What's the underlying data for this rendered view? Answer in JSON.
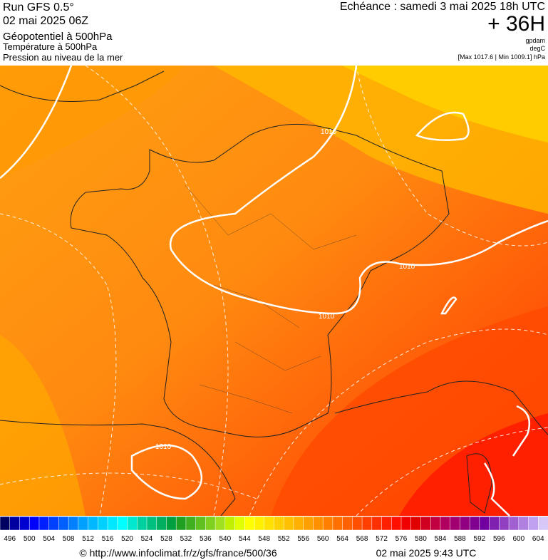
{
  "header": {
    "run": "Run GFS 0.5°",
    "run_date": "02 mai 2025 06Z",
    "field_1": "Géopotentiel à 500hPa",
    "field_2": "Température à 500hPa",
    "field_3": "Pression au niveau de la mer",
    "valid_time": "Echéance : samedi 3 mai 2025 18h UTC",
    "lead": "+ 36H",
    "unit_1": "gpdam",
    "unit_2": "degC",
    "pressure_range": "[Max 1017.6 | Min 1009.1] hPa"
  },
  "map": {
    "contour_labels": [
      "1010",
      "1010",
      "1010",
      "1010"
    ]
  },
  "scale": {
    "labels": [
      496,
      500,
      504,
      508,
      512,
      516,
      520,
      524,
      528,
      532,
      536,
      540,
      544,
      548,
      552,
      556,
      560,
      564,
      568,
      572,
      576,
      580,
      584,
      588,
      592,
      596,
      600,
      604
    ],
    "colors": [
      "#000060",
      "#0000a0",
      "#0000d0",
      "#0000ff",
      "#0020ff",
      "#0040ff",
      "#0060ff",
      "#0080ff",
      "#00a0ff",
      "#00b8ff",
      "#00d0ff",
      "#00e8ff",
      "#00ffff",
      "#00e8d0",
      "#00d0a0",
      "#00c080",
      "#00b060",
      "#00a040",
      "#20a020",
      "#40b020",
      "#60c020",
      "#80d020",
      "#a0e020",
      "#c0f000",
      "#e0ff00",
      "#ffff00",
      "#fff000",
      "#ffe000",
      "#ffd000",
      "#ffc000",
      "#ffb000",
      "#ffa000",
      "#ff9000",
      "#ff8000",
      "#ff7000",
      "#ff6000",
      "#ff5000",
      "#ff4000",
      "#ff3000",
      "#ff2000",
      "#ff1000",
      "#f00000",
      "#e00000",
      "#d00020",
      "#c00040",
      "#b00060",
      "#a00070",
      "#900080",
      "#800090",
      "#7000a0",
      "#8020b0",
      "#9040c0",
      "#a060d0",
      "#b080e0",
      "#c0a0f0",
      "#d8c8f8"
    ]
  },
  "footer": {
    "source": "© http://www.infoclimat.fr/z/gfs/france/500/36",
    "timestamp": "02 mai 2025  9:43 UTC"
  }
}
